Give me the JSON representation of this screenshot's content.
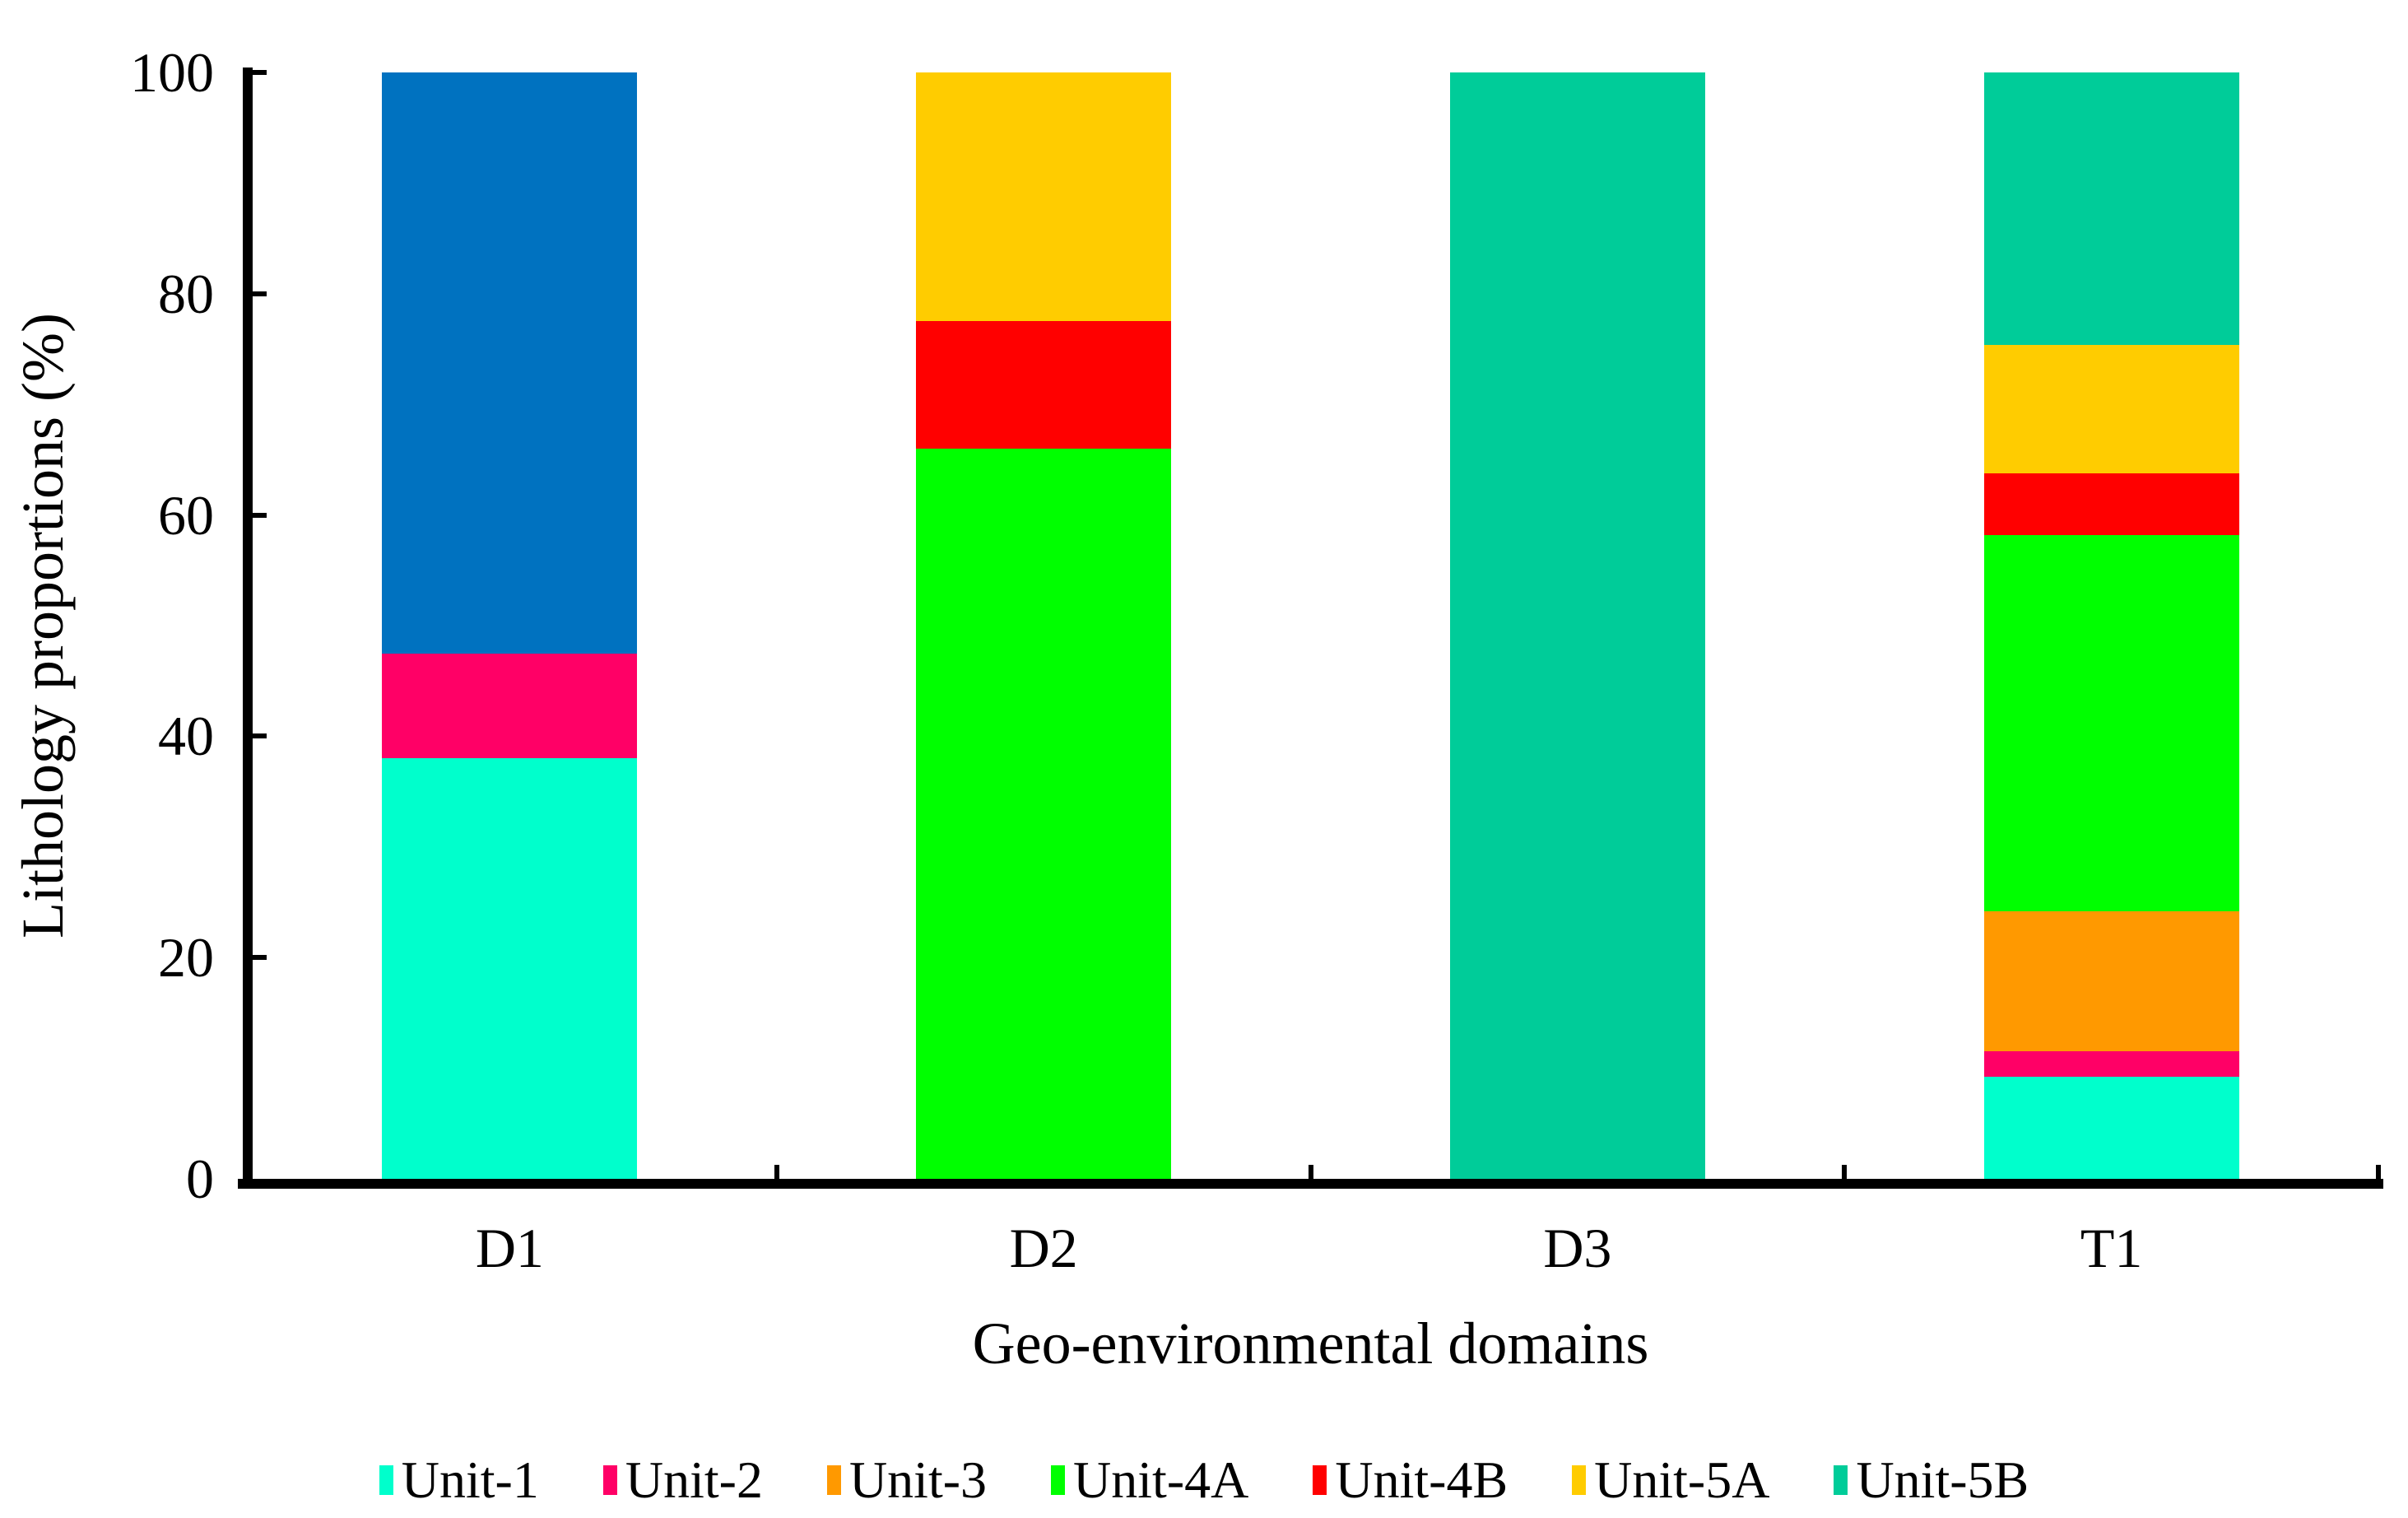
{
  "chart_data": {
    "type": "bar",
    "stacked": true,
    "title": "",
    "xlabel": "Geo-environmental domains",
    "ylabel": "Lithology proportions (%)",
    "categories": [
      "D1",
      "D2",
      "D3",
      "T1"
    ],
    "series": [
      {
        "name": "Unit-1",
        "color": "#00FFCC",
        "in_legend": true,
        "values": [
          38,
          0,
          0,
          9.2
        ]
      },
      {
        "name": "Unit-2",
        "color": "#FF0066",
        "in_legend": true,
        "values": [
          9.5,
          0,
          0,
          2.3
        ]
      },
      {
        "name": "Unit-3",
        "color": "#FF9900",
        "in_legend": true,
        "values": [
          0,
          0,
          0,
          12.7
        ]
      },
      {
        "name": "Unit-4A",
        "color": "#00FF00",
        "in_legend": true,
        "values": [
          0,
          66,
          0,
          34
        ]
      },
      {
        "name": "Unit-4B",
        "color": "#FF0000",
        "in_legend": true,
        "values": [
          0,
          11.5,
          0,
          5.6
        ]
      },
      {
        "name": "Unit-5A",
        "color": "#FFCC00",
        "in_legend": true,
        "values": [
          0,
          22.5,
          0,
          11.6
        ]
      },
      {
        "name": "Unit-5B",
        "color": "#00CC99",
        "in_legend": true,
        "values": [
          0,
          0,
          100,
          24.6
        ]
      },
      {
        "name": "unlabeled-blue-segment",
        "color": "#0072C0",
        "in_legend": false,
        "values": [
          52.5,
          0,
          0,
          0
        ]
      }
    ],
    "legend": [
      "Unit-1",
      "Unit-2",
      "Unit-3",
      "Unit-4A",
      "Unit-4B",
      "Unit-5A",
      "Unit-5B"
    ],
    "legend_position": "bottom",
    "ylim": [
      0,
      100
    ],
    "y_ticks": [
      0,
      20,
      40,
      60,
      80,
      100
    ],
    "grid": false,
    "axis_color": "#000000",
    "background_color": "#FFFFFF"
  }
}
